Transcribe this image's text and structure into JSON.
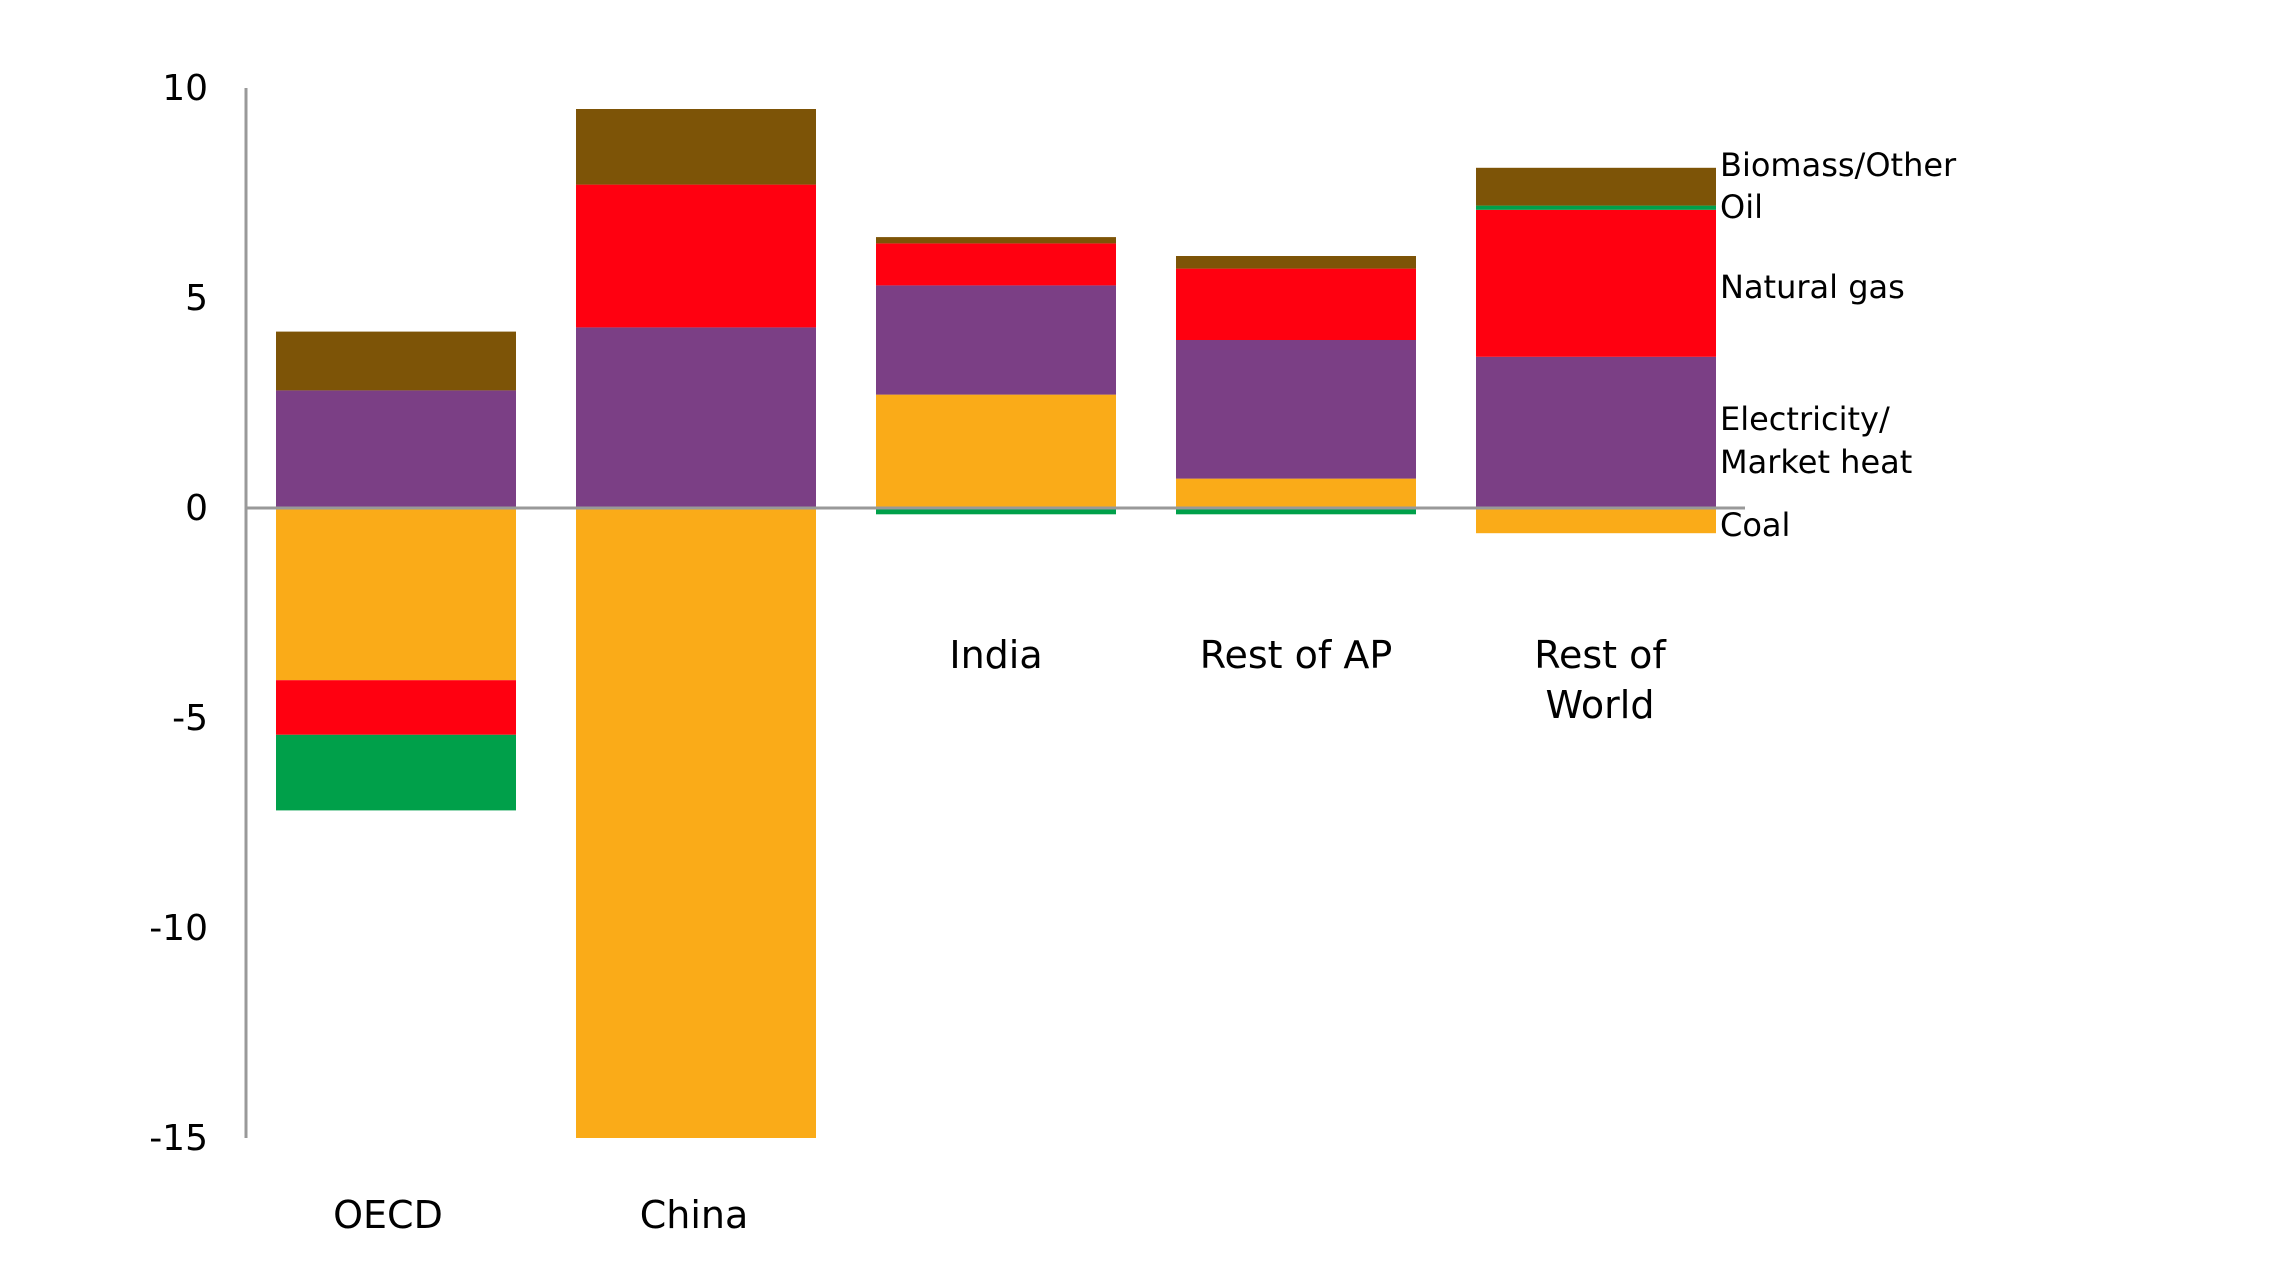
{
  "chart_data": {
    "type": "bar",
    "stacked": true,
    "categories": [
      "OECD",
      "China",
      "India",
      "Rest of  AP",
      "Rest of World"
    ],
    "category_label_lines": [
      [
        "OECD"
      ],
      [
        "China"
      ],
      [
        "India"
      ],
      [
        "Rest of  AP"
      ],
      [
        "Rest of",
        "World"
      ]
    ],
    "ylim": [
      -15,
      10
    ],
    "yticks": [
      10,
      5,
      0,
      -5,
      -10,
      -15
    ],
    "grid": false,
    "legend": "right, labels beside the last bar",
    "series": [
      {
        "name": "Coal",
        "color": "#FAAB18",
        "values": [
          -4.1,
          -15.0,
          2.7,
          0.7,
          -0.6
        ]
      },
      {
        "name": "Electricity/ Market heat",
        "label_lines": [
          "Electricity/",
          "Market heat"
        ],
        "color": "#7B3F85",
        "values": [
          2.8,
          4.3,
          2.6,
          3.3,
          3.6
        ]
      },
      {
        "name": "Natural gas",
        "color": "#FF0010",
        "values": [
          -1.3,
          3.4,
          1.0,
          1.7,
          3.5
        ]
      },
      {
        "name": "Oil",
        "color": "#00A04A",
        "values": [
          -1.8,
          0.0,
          -0.15,
          -0.15,
          0.1
        ]
      },
      {
        "name": "Biomass/Other",
        "color": "#7D5407",
        "values": [
          1.4,
          1.8,
          0.15,
          0.3,
          0.9
        ]
      }
    ]
  }
}
